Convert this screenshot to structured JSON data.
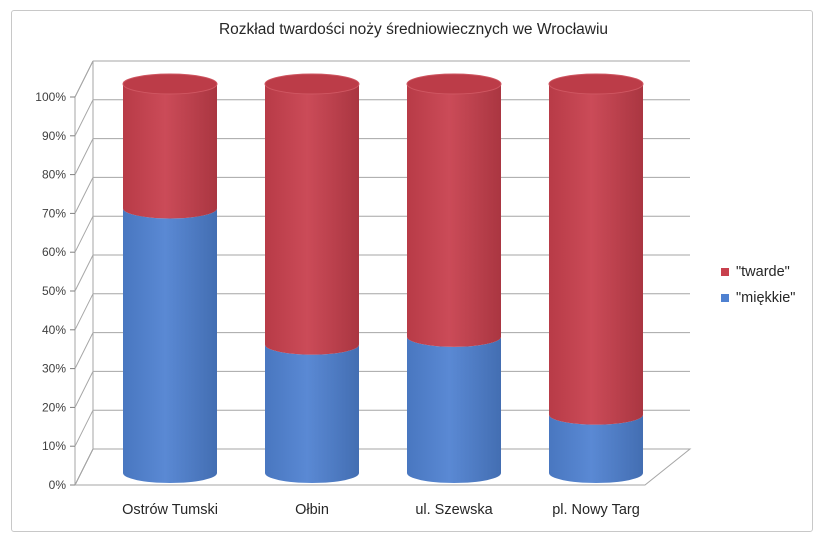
{
  "chart_data": {
    "type": "bar",
    "stacked": true,
    "percent": true,
    "shape": "cylinder-3d",
    "title": "Rozkład twardości noży średniowiecznych we Wrocławiu",
    "categories": [
      "Ostrów Tumski",
      "Ołbin",
      "ul. Szewska",
      "pl. Nowy Targ"
    ],
    "series": [
      {
        "name": "\"miękkie\"",
        "values": [
          68,
          33,
          35,
          15
        ],
        "color": "#4f81d1"
      },
      {
        "name": "\"twarde\"",
        "values": [
          32,
          67,
          65,
          85
        ],
        "color": "#c8404d"
      }
    ],
    "ylim": [
      0,
      100
    ],
    "y_ticks": [
      "0%",
      "10%",
      "20%",
      "30%",
      "40%",
      "50%",
      "60%",
      "70%",
      "80%",
      "90%",
      "100%"
    ],
    "grid": true,
    "legend_position": "right",
    "legend_order": [
      "\"twarde\"",
      "\"miękkie\""
    ]
  }
}
